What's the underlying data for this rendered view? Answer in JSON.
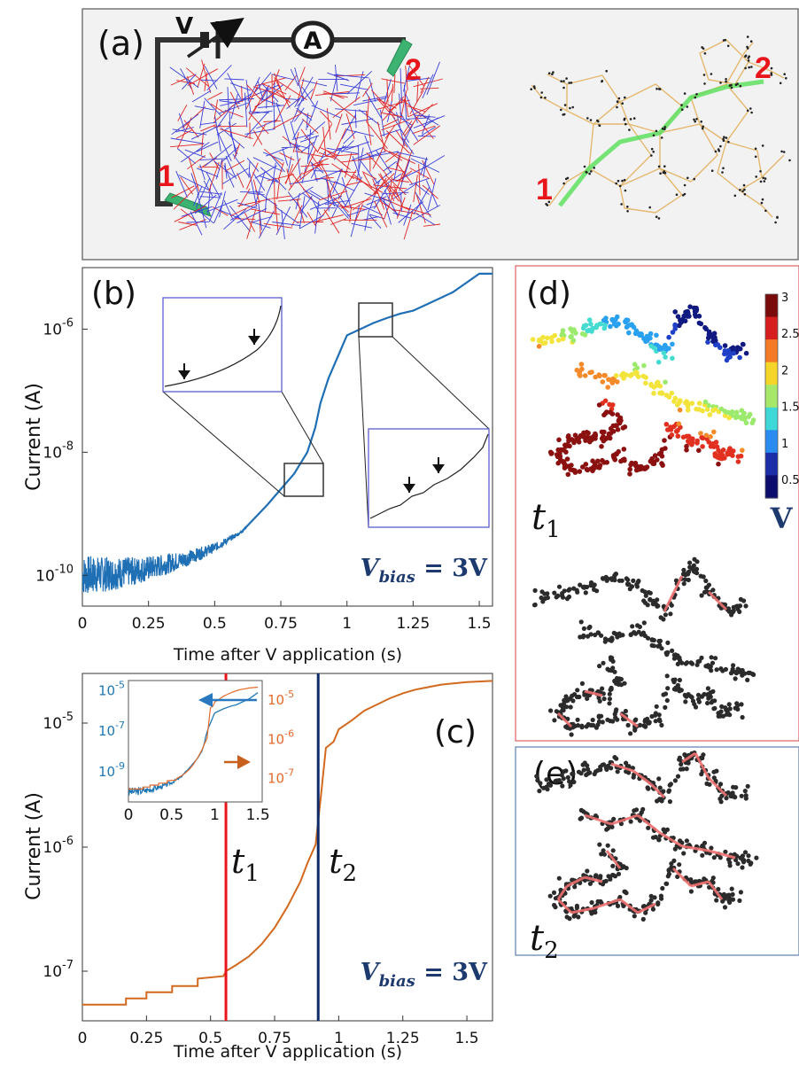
{
  "panel_a": {
    "label": "(a)",
    "source_label": "V",
    "ammeter_label": "A",
    "electrode_1": "1",
    "electrode_2": "2",
    "graph_electrode_1": "1",
    "graph_electrode_2": "2"
  },
  "panel_d": {
    "label": "(d)",
    "time_label": "t",
    "time_sub": "1",
    "colorbar_unit": "V",
    "colorbar_ticks": [
      "3",
      "2.5",
      "2",
      "1.5",
      "1",
      "0.5"
    ]
  },
  "panel_e": {
    "label": "(e)",
    "time_label": "t",
    "time_sub": "2"
  },
  "chart_data": [
    {
      "id": "b",
      "panel_label": "(b)",
      "type": "line",
      "xlabel": "Time after V application (s)",
      "ylabel": "Current (A)",
      "yscale": "log",
      "xlim": [
        0,
        1.55
      ],
      "ylim_log10": [
        -10.5,
        -5
      ],
      "xticks": [
        "0",
        "0.25",
        "0.5",
        "0.75",
        "1",
        "1.25",
        "1.5"
      ],
      "xtick_values": [
        0,
        0.25,
        0.5,
        0.75,
        1,
        1.25,
        1.5
      ],
      "yticks": [
        {
          "base": "10",
          "exp": "-10",
          "value": -10
        },
        {
          "base": "10",
          "exp": "-8",
          "value": -8
        },
        {
          "base": "10",
          "exp": "-6",
          "value": -6
        }
      ],
      "annotation": {
        "var": "V",
        "sub": "bias",
        "eq": " = 3V"
      },
      "color": "#1f6fb5",
      "x": [
        0,
        0.1,
        0.2,
        0.3,
        0.4,
        0.5,
        0.6,
        0.7,
        0.75,
        0.8,
        0.85,
        0.88,
        0.9,
        0.93,
        0.95,
        0.98,
        1.0,
        1.05,
        1.1,
        1.15,
        1.2,
        1.25,
        1.3,
        1.35,
        1.4,
        1.45,
        1.5,
        1.55
      ],
      "y_log10": [
        -10.0,
        -9.98,
        -9.93,
        -9.84,
        -9.72,
        -9.55,
        -9.3,
        -8.85,
        -8.6,
        -8.35,
        -8.0,
        -7.6,
        -7.2,
        -6.8,
        -6.6,
        -6.3,
        -6.1,
        -6.0,
        -5.9,
        -5.82,
        -5.75,
        -5.7,
        -5.6,
        -5.5,
        -5.4,
        -5.25,
        -5.1,
        -5.1
      ]
    },
    {
      "id": "c",
      "panel_label": "(c)",
      "type": "line",
      "xlabel": "Time after V application (s)",
      "ylabel": "Current (A)",
      "yscale": "log",
      "xlim": [
        0,
        1.6
      ],
      "ylim_log10": [
        -7.4,
        -4.6
      ],
      "xticks": [
        "0",
        "0.25",
        "0.5",
        "0.75",
        "1",
        "1.25",
        "1.5"
      ],
      "xtick_values": [
        0,
        0.25,
        0.5,
        0.75,
        1,
        1.25,
        1.5
      ],
      "yticks": [
        {
          "base": "10",
          "exp": "-5",
          "value": -5
        },
        {
          "base": "10",
          "exp": "-6",
          "value": -6
        },
        {
          "base": "10",
          "exp": "-7",
          "value": -7
        }
      ],
      "annotation": {
        "var": "V",
        "sub": "bias",
        "eq": " = 3V"
      },
      "color": "#d2691e",
      "x": [
        0,
        0.1,
        0.17,
        0.17,
        0.25,
        0.25,
        0.35,
        0.35,
        0.45,
        0.45,
        0.55,
        0.56,
        0.6,
        0.65,
        0.7,
        0.75,
        0.8,
        0.85,
        0.88,
        0.91,
        0.93,
        0.95,
        0.98,
        1.0,
        1.05,
        1.1,
        1.15,
        1.2,
        1.25,
        1.3,
        1.35,
        1.4,
        1.5,
        1.6
      ],
      "y_log10": [
        -7.27,
        -7.27,
        -7.27,
        -7.22,
        -7.22,
        -7.17,
        -7.17,
        -7.12,
        -7.12,
        -7.06,
        -7.04,
        -7.0,
        -6.95,
        -6.88,
        -6.78,
        -6.65,
        -6.48,
        -6.28,
        -6.12,
        -5.98,
        -5.6,
        -5.2,
        -5.15,
        -5.05,
        -4.98,
        -4.9,
        -4.85,
        -4.8,
        -4.76,
        -4.73,
        -4.71,
        -4.69,
        -4.67,
        -4.66
      ],
      "markers": [
        {
          "label": "t",
          "sub": "1",
          "x": 0.56,
          "color": "#e8161b"
        },
        {
          "label": "t",
          "sub": "2",
          "x": 0.92,
          "color": "#0d2a6b"
        }
      ],
      "inset": {
        "xlim": [
          0,
          1.55
        ],
        "xticks": [
          "0",
          "0.5",
          "1",
          "1.5"
        ],
        "xtick_values": [
          0,
          0.5,
          1,
          1.5
        ],
        "left_ticks": [
          {
            "base": "10",
            "exp": "-5",
            "value": -5
          },
          {
            "base": "10",
            "exp": "-7",
            "value": -7
          },
          {
            "base": "10",
            "exp": "-9",
            "value": -9
          }
        ],
        "left_range_log10": [
          -10.5,
          -4.5
        ],
        "right_ticks": [
          {
            "base": "10",
            "exp": "-5",
            "value": -5
          },
          {
            "base": "10",
            "exp": "-6",
            "value": -6
          },
          {
            "base": "10",
            "exp": "-7",
            "value": -7
          }
        ],
        "right_range_log10": [
          -7.6,
          -4.5
        ],
        "left_color": "#1f77b4",
        "right_color": "#e46a2a"
      }
    }
  ]
}
